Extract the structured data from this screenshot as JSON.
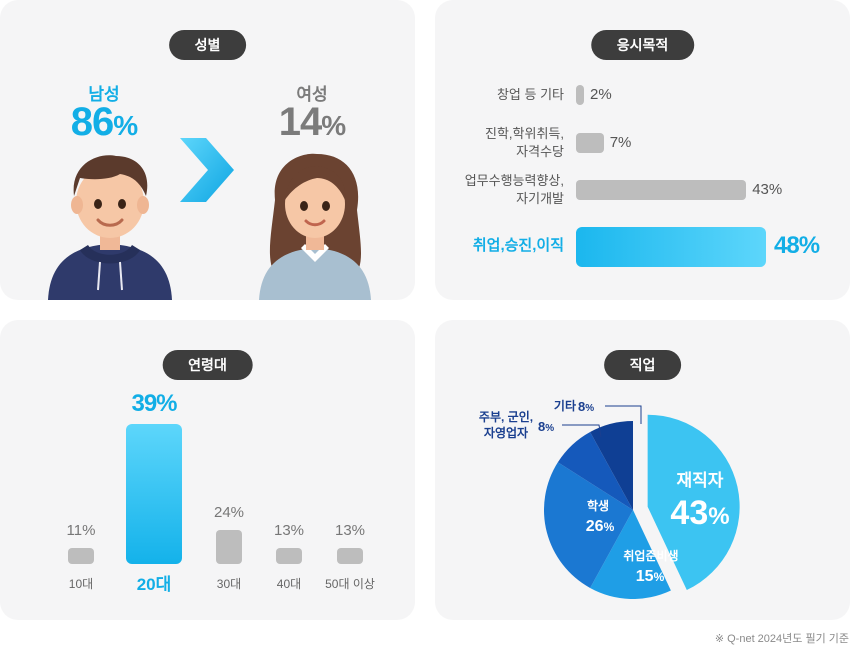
{
  "gender": {
    "title": "성별",
    "male_label": "남성",
    "male_value": "86",
    "male_unit": "%",
    "female_label": "여성",
    "female_value": "14",
    "female_unit": "%"
  },
  "purpose": {
    "title": "응시목적",
    "items": [
      {
        "label": "창업 등 기타",
        "value": 2,
        "value_text": "2%"
      },
      {
        "label": "진학,학위취득,\n자격수당",
        "value": 7,
        "value_text": "7%"
      },
      {
        "label": "업무수행능력향상,\n자기개발",
        "value": 43,
        "value_text": "43%"
      },
      {
        "label": "취업,승진,이직",
        "value": 48,
        "value_text": "48%"
      }
    ]
  },
  "age": {
    "title": "연령대",
    "items": [
      {
        "label": "10대",
        "value": 11,
        "value_text": "11%"
      },
      {
        "label": "20대",
        "value": 39,
        "value_text": "39%"
      },
      {
        "label": "30대",
        "value": 24,
        "value_text": "24%"
      },
      {
        "label": "40대",
        "value": 13,
        "value_text": "13%"
      },
      {
        "label": "50대 이상",
        "value": 13,
        "value_text": "13%"
      }
    ]
  },
  "job": {
    "title": "직업",
    "slices": [
      {
        "label": "재직자",
        "value": 43,
        "value_text": "43",
        "unit": "%",
        "color": "#3cc4f2"
      },
      {
        "label": "취업준비생",
        "value": 15,
        "value_text": "15",
        "unit": "%",
        "color": "#1f9ee6"
      },
      {
        "label": "학생",
        "value": 26,
        "value_text": "26",
        "unit": "%",
        "color": "#1b78d2"
      },
      {
        "label": "주부, 군인,\n자영업자",
        "value": 8,
        "value_text": "8",
        "unit": "%",
        "color": "#1559bb"
      },
      {
        "label": "기타",
        "value": 8,
        "value_text": "8",
        "unit": "%",
        "color": "#0f3f94"
      }
    ]
  },
  "chart_data": [
    {
      "type": "bar",
      "title": "응시목적",
      "categories": [
        "창업 등 기타",
        "진학,학위취득,자격수당",
        "업무수행능력향상,자기개발",
        "취업,승진,이직"
      ],
      "values": [
        2,
        7,
        43,
        48
      ]
    },
    {
      "type": "bar",
      "title": "연령대",
      "categories": [
        "10대",
        "20대",
        "30대",
        "40대",
        "50대 이상"
      ],
      "values": [
        11,
        39,
        24,
        13,
        13
      ]
    },
    {
      "type": "pie",
      "title": "직업",
      "categories": [
        "재직자",
        "취업준비생",
        "학생",
        "주부, 군인, 자영업자",
        "기타"
      ],
      "values": [
        43,
        15,
        26,
        8,
        8
      ]
    },
    {
      "type": "bar",
      "title": "성별",
      "categories": [
        "남성",
        "여성"
      ],
      "values": [
        86,
        14
      ]
    }
  ],
  "colors": {
    "accent": "#12aee6",
    "bar_gray": "#bdbdbd",
    "pill": "#3d3d3d",
    "card": "#f5f5f6"
  },
  "note": "※ Q-net 2024년도 필기 기준"
}
